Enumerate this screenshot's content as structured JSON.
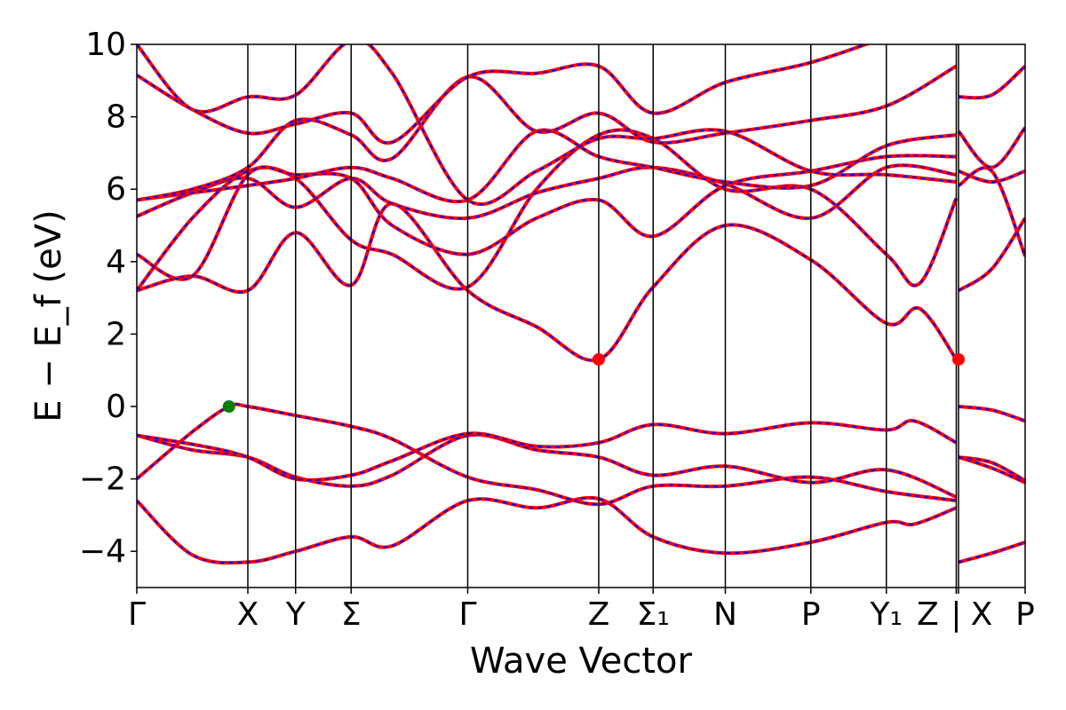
{
  "chart_data": {
    "type": "line",
    "xlabel": "Wave Vector",
    "ylabel": "E − E_f (eV)",
    "ylim": [
      -5,
      10
    ],
    "yticks": [
      -4,
      -2,
      0,
      2,
      4,
      6,
      8,
      10
    ],
    "grid": false,
    "legend": "none",
    "kpath": [
      {
        "label": "Γ",
        "x": 0.0
      },
      {
        "label": "X",
        "x": 1.0
      },
      {
        "label": "Y",
        "x": 1.43
      },
      {
        "label": "Σ",
        "x": 1.93
      },
      {
        "label": "Γ",
        "x": 2.98
      },
      {
        "label": "Z",
        "x": 4.16
      },
      {
        "label": "Σ₁",
        "x": 4.65
      },
      {
        "label": "N",
        "x": 5.3
      },
      {
        "label": "P",
        "x": 6.07
      },
      {
        "label": "Y₁",
        "x": 6.75
      },
      {
        "label": "Z",
        "x": 7.38
      },
      {
        "label": "|",
        "x": 7.38
      },
      {
        "label": "X",
        "x": 7.4
      },
      {
        "label": "P",
        "x": 8.0
      }
    ],
    "xrange": [
      0,
      8.0
    ],
    "colors": {
      "dft": "#0000ff",
      "wannier": "#ff0000",
      "vbm": "#008000",
      "cbm": "#ff0000"
    },
    "markers": [
      {
        "kind": "vbm",
        "x": 0.83,
        "y": 0.0
      },
      {
        "kind": "cbm",
        "x": 4.16,
        "y": 1.3
      },
      {
        "kind": "cbm",
        "x": 7.4,
        "y": 1.3
      }
    ],
    "bands": [
      {
        "name": "",
        "points": [
          [
            0,
            -2.6
          ],
          [
            0.5,
            -4.1
          ],
          [
            1.0,
            -4.3
          ],
          [
            1.43,
            -4.0
          ],
          [
            1.93,
            -3.6
          ],
          [
            2.3,
            -3.85
          ],
          [
            2.98,
            -2.6
          ],
          [
            3.6,
            -2.8
          ],
          [
            4.16,
            -2.55
          ],
          [
            4.65,
            -3.6
          ],
          [
            5.3,
            -4.05
          ],
          [
            6.07,
            -3.75
          ],
          [
            6.75,
            -3.2
          ],
          [
            7.0,
            -3.25
          ],
          [
            7.38,
            -2.8
          ]
        ]
      },
      {
        "name": "",
        "points": [
          [
            0,
            -2.0
          ],
          [
            0.5,
            -0.7
          ],
          [
            0.83,
            0.0
          ],
          [
            1.0,
            0.0
          ],
          [
            1.43,
            -0.25
          ],
          [
            1.93,
            -0.55
          ],
          [
            2.3,
            -0.9
          ],
          [
            2.98,
            -1.95
          ],
          [
            3.6,
            -2.3
          ],
          [
            4.16,
            -2.7
          ],
          [
            4.65,
            -2.2
          ],
          [
            5.3,
            -2.2
          ],
          [
            6.07,
            -1.95
          ],
          [
            6.75,
            -2.35
          ],
          [
            7.38,
            -2.6
          ]
        ]
      },
      {
        "name": "",
        "points": [
          [
            0,
            -0.8
          ],
          [
            0.5,
            -1.2
          ],
          [
            1.0,
            -1.4
          ],
          [
            1.43,
            -1.95
          ],
          [
            1.93,
            -2.2
          ],
          [
            2.3,
            -1.9
          ],
          [
            2.98,
            -0.8
          ],
          [
            3.6,
            -1.2
          ],
          [
            4.16,
            -1.4
          ],
          [
            4.65,
            -1.9
          ],
          [
            5.3,
            -1.65
          ],
          [
            6.07,
            -2.1
          ],
          [
            6.75,
            -1.75
          ],
          [
            7.38,
            -2.5
          ]
        ]
      },
      {
        "name": "",
        "points": [
          [
            0,
            -0.8
          ],
          [
            0.6,
            -1.1
          ],
          [
            1.0,
            -1.4
          ],
          [
            1.43,
            -2.0
          ],
          [
            1.93,
            -1.9
          ],
          [
            2.3,
            -1.5
          ],
          [
            2.98,
            -0.75
          ],
          [
            3.6,
            -1.1
          ],
          [
            4.16,
            -1.0
          ],
          [
            4.65,
            -0.5
          ],
          [
            5.3,
            -0.75
          ],
          [
            6.07,
            -0.45
          ],
          [
            6.75,
            -0.65
          ],
          [
            7.0,
            -0.4
          ],
          [
            7.38,
            -1.0
          ]
        ]
      },
      {
        "name": "",
        "points": [
          [
            0,
            3.2
          ],
          [
            0.5,
            3.6
          ],
          [
            1.0,
            3.2
          ],
          [
            1.43,
            4.8
          ],
          [
            1.93,
            3.35
          ],
          [
            2.3,
            5.6
          ],
          [
            2.98,
            3.2
          ],
          [
            3.6,
            2.2
          ],
          [
            4.16,
            1.3
          ],
          [
            4.65,
            3.3
          ],
          [
            5.3,
            5.0
          ],
          [
            6.07,
            4.05
          ],
          [
            6.75,
            2.3
          ],
          [
            7.05,
            2.7
          ],
          [
            7.38,
            1.3
          ]
        ]
      },
      {
        "name": "",
        "points": [
          [
            0,
            3.2
          ],
          [
            0.5,
            5.2
          ],
          [
            1.0,
            6.5
          ],
          [
            1.43,
            6.3
          ],
          [
            1.93,
            4.6
          ],
          [
            2.3,
            4.2
          ],
          [
            2.98,
            3.3
          ],
          [
            3.6,
            6.0
          ],
          [
            4.16,
            7.5
          ],
          [
            4.65,
            7.4
          ],
          [
            5.3,
            6.0
          ],
          [
            6.07,
            6.0
          ],
          [
            6.75,
            4.2
          ],
          [
            7.05,
            3.4
          ],
          [
            7.38,
            5.75
          ]
        ]
      },
      {
        "name": "",
        "points": [
          [
            0,
            4.2
          ],
          [
            0.5,
            3.6
          ],
          [
            1.0,
            6.4
          ],
          [
            1.43,
            6.4
          ],
          [
            1.93,
            6.3
          ],
          [
            2.3,
            5.0
          ],
          [
            2.98,
            4.2
          ],
          [
            3.6,
            5.2
          ],
          [
            4.16,
            5.7
          ],
          [
            4.65,
            4.7
          ],
          [
            5.3,
            6.1
          ],
          [
            6.07,
            6.5
          ],
          [
            6.75,
            6.9
          ],
          [
            7.38,
            6.9
          ]
        ]
      },
      {
        "name": "",
        "points": [
          [
            0,
            5.25
          ],
          [
            0.5,
            5.9
          ],
          [
            1.0,
            6.3
          ],
          [
            1.43,
            5.5
          ],
          [
            1.93,
            6.3
          ],
          [
            2.3,
            5.6
          ],
          [
            2.98,
            5.2
          ],
          [
            3.6,
            5.9
          ],
          [
            4.16,
            6.3
          ],
          [
            4.65,
            6.6
          ],
          [
            5.3,
            6.15
          ],
          [
            6.07,
            5.2
          ],
          [
            6.75,
            6.6
          ],
          [
            7.38,
            6.4
          ]
        ]
      },
      {
        "name": "",
        "points": [
          [
            0,
            5.7
          ],
          [
            0.5,
            5.9
          ],
          [
            1.0,
            6.1
          ],
          [
            1.43,
            6.3
          ],
          [
            1.93,
            6.6
          ],
          [
            2.3,
            6.3
          ],
          [
            2.98,
            5.7
          ],
          [
            3.6,
            7.6
          ],
          [
            4.16,
            6.9
          ],
          [
            4.65,
            6.6
          ],
          [
            5.3,
            6.2
          ],
          [
            6.07,
            6.1
          ],
          [
            6.75,
            7.2
          ],
          [
            7.38,
            7.5
          ]
        ]
      },
      {
        "name": "",
        "points": [
          [
            0,
            5.7
          ],
          [
            0.5,
            6.0
          ],
          [
            1.0,
            6.6
          ],
          [
            1.43,
            7.9
          ],
          [
            1.93,
            7.5
          ],
          [
            2.3,
            6.85
          ],
          [
            2.98,
            9.1
          ],
          [
            3.6,
            7.6
          ],
          [
            4.16,
            8.1
          ],
          [
            4.65,
            7.3
          ],
          [
            5.3,
            7.55
          ],
          [
            6.07,
            7.9
          ],
          [
            6.75,
            8.3
          ],
          [
            7.38,
            9.4
          ]
        ]
      },
      {
        "name": "",
        "points": [
          [
            0,
            9.15
          ],
          [
            0.5,
            8.2
          ],
          [
            1.0,
            7.55
          ],
          [
            1.43,
            7.8
          ],
          [
            1.93,
            8.1
          ],
          [
            2.3,
            7.3
          ],
          [
            2.98,
            9.1
          ],
          [
            3.6,
            9.2
          ],
          [
            4.16,
            9.4
          ],
          [
            4.65,
            8.1
          ],
          [
            5.3,
            8.95
          ],
          [
            6.07,
            9.5
          ],
          [
            6.75,
            10.2
          ]
        ]
      },
      {
        "name": "",
        "points": [
          [
            0,
            10.0
          ],
          [
            0.5,
            8.2
          ],
          [
            1.0,
            8.55
          ],
          [
            1.43,
            8.6
          ],
          [
            1.93,
            10.1
          ],
          [
            2.3,
            9.2
          ],
          [
            2.98,
            5.7
          ],
          [
            3.6,
            6.5
          ],
          [
            4.16,
            7.4
          ],
          [
            4.65,
            7.4
          ],
          [
            5.3,
            7.6
          ],
          [
            6.07,
            6.5
          ],
          [
            6.75,
            6.4
          ],
          [
            7.38,
            6.2
          ]
        ]
      },
      {
        "name": "",
        "points": [
          [
            7.4,
            -4.3
          ],
          [
            7.7,
            -4.05
          ],
          [
            8.0,
            -3.75
          ]
        ]
      },
      {
        "name": "",
        "points": [
          [
            7.4,
            -1.4
          ],
          [
            7.7,
            -1.7
          ],
          [
            8.0,
            -2.1
          ]
        ]
      },
      {
        "name": "",
        "points": [
          [
            7.4,
            -1.4
          ],
          [
            7.7,
            -1.55
          ],
          [
            8.0,
            -2.05
          ]
        ]
      },
      {
        "name": "",
        "points": [
          [
            7.4,
            0.0
          ],
          [
            7.7,
            -0.1
          ],
          [
            8.0,
            -0.4
          ]
        ]
      },
      {
        "name": "",
        "points": [
          [
            7.4,
            3.2
          ],
          [
            7.7,
            3.8
          ],
          [
            8.0,
            5.2
          ]
        ]
      },
      {
        "name": "",
        "points": [
          [
            7.4,
            6.1
          ],
          [
            7.7,
            6.5
          ],
          [
            8.0,
            4.15
          ]
        ]
      },
      {
        "name": "",
        "points": [
          [
            7.4,
            6.5
          ],
          [
            7.7,
            6.2
          ],
          [
            8.0,
            6.5
          ]
        ]
      },
      {
        "name": "",
        "points": [
          [
            7.4,
            7.6
          ],
          [
            7.7,
            6.6
          ],
          [
            8.0,
            7.7
          ]
        ]
      },
      {
        "name": "",
        "points": [
          [
            7.4,
            8.55
          ],
          [
            7.7,
            8.6
          ],
          [
            8.0,
            9.4
          ]
        ]
      }
    ]
  }
}
